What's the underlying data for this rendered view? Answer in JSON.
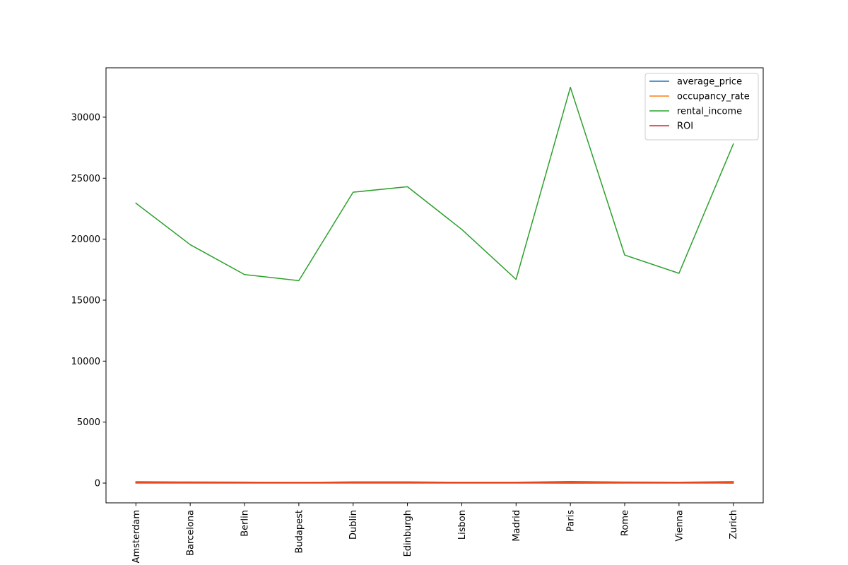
{
  "chart_data": {
    "type": "line",
    "categories": [
      "Amsterdam",
      "Barcelona",
      "Berlin",
      "Budapest",
      "Dublin",
      "Edinburgh",
      "Lisbon",
      "Madrid",
      "Paris",
      "Rome",
      "Vienna",
      "Zurich"
    ],
    "series": [
      {
        "name": "average_price",
        "color": "#1f77b4",
        "values": [
          115,
          95,
          80,
          55,
          105,
          100,
          70,
          75,
          130,
          90,
          70,
          125
        ]
      },
      {
        "name": "occupancy_rate",
        "color": "#ff7f0e",
        "values": [
          70,
          72,
          68,
          65,
          70,
          72,
          68,
          66,
          75,
          70,
          68,
          72
        ]
      },
      {
        "name": "rental_income",
        "color": "#2ca02c",
        "values": [
          22950,
          19550,
          17100,
          16600,
          23850,
          24300,
          20800,
          16700,
          32450,
          18700,
          17200,
          27800
        ]
      },
      {
        "name": "ROI",
        "color": "#d62728",
        "values": [
          6,
          7,
          6.5,
          8,
          6,
          6.5,
          7,
          6,
          5,
          6.5,
          7,
          5
        ]
      }
    ],
    "yticks": [
      0,
      5000,
      10000,
      15000,
      20000,
      25000,
      30000
    ],
    "ylim": [
      -1620,
      34050
    ],
    "grid": false,
    "legend_position": "top-right",
    "title": "",
    "xlabel": "",
    "ylabel": ""
  }
}
